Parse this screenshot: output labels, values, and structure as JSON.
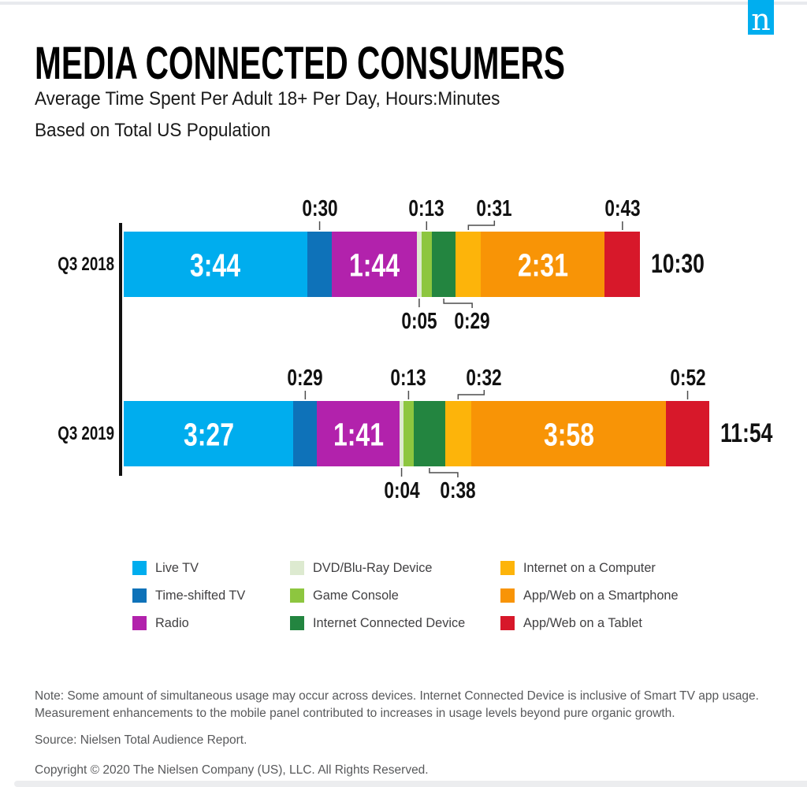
{
  "brand": {
    "logo_letter": "n",
    "logo_color": "#00AEEF"
  },
  "header": {
    "title": "MEDIA CONNECTED CONSUMERS",
    "subtitle1": "Average Time Spent Per Adult 18+ Per Day, Hours:Minutes",
    "subtitle2": "Based on Total US Population"
  },
  "chart_data": {
    "type": "bar",
    "orientation": "horizontal",
    "stacked": true,
    "unit": "hours:minutes",
    "grid": false,
    "legend_position": "bottom",
    "categories": [
      "Q3 2018",
      "Q3 2019"
    ],
    "series": [
      {
        "name": "Live TV",
        "color": "#00ADEE",
        "values": [
          "3:44",
          "3:27"
        ],
        "label_placement": "inside"
      },
      {
        "name": "Time-shifted TV",
        "color": "#0E72B9",
        "values": [
          "0:30",
          "0:29"
        ],
        "label_placement": "above"
      },
      {
        "name": "Radio",
        "color": "#B222AC",
        "values": [
          "1:44",
          "1:41"
        ],
        "label_placement": "inside"
      },
      {
        "name": "DVD/Blu-Ray Device",
        "color": "#DDEAD0",
        "values": [
          "0:05",
          "0:04"
        ],
        "label_placement": "below"
      },
      {
        "name": "Game Console",
        "color": "#8DC63F",
        "values": [
          "0:13",
          "0:13"
        ],
        "label_placement": "above"
      },
      {
        "name": "Internet Connected Device",
        "color": "#238540",
        "values": [
          "0:29",
          "0:38"
        ],
        "label_placement": "below-elbow"
      },
      {
        "name": "Internet on a Computer",
        "color": "#FDB40A",
        "values": [
          "0:31",
          "0:32"
        ],
        "label_placement": "above-elbow"
      },
      {
        "name": "App/Web on a Smartphone",
        "color": "#F89406",
        "values": [
          "2:31",
          "3:58"
        ],
        "label_placement": "inside"
      },
      {
        "name": "App/Web on a Tablet",
        "color": "#D7182A",
        "values": [
          "0:43",
          "0:52"
        ],
        "label_placement": "above"
      }
    ],
    "totals": [
      "10:30",
      "11:54"
    ],
    "value_label_color_inside": "#FFFFFF",
    "value_label_color_outside": "#111111"
  },
  "footer": {
    "note_line1": "Note: Some amount of simultaneous usage may occur across devices. Internet Connected Device is inclusive of Smart TV app usage.",
    "note_line2": "Measurement enhancements to the mobile panel contributed to increases in usage levels beyond pure organic growth.",
    "source": "Source: Nielsen Total Audience Report.",
    "copyright": "Copyright © 2020 The Nielsen Company (US), LLC. All Rights Reserved."
  }
}
